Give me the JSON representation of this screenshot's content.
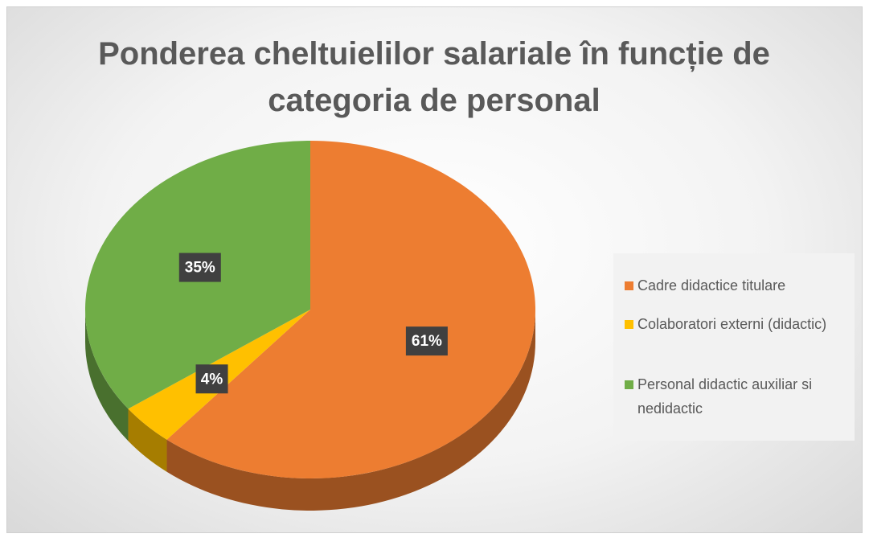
{
  "chart_data": {
    "type": "pie",
    "title": "Ponderea cheltuielilor salariale în funcție de categoria de personal",
    "categories": [
      "Cadre didactice titulare",
      "Colaboratori externi (didactic)",
      "Personal didactic auxiliar si nedidactic"
    ],
    "values": [
      61,
      4,
      35
    ],
    "value_labels": [
      "61%",
      "4%",
      "35%"
    ],
    "colors": [
      "#ed7d31",
      "#ffc000",
      "#70ad47"
    ],
    "legend": "right"
  }
}
